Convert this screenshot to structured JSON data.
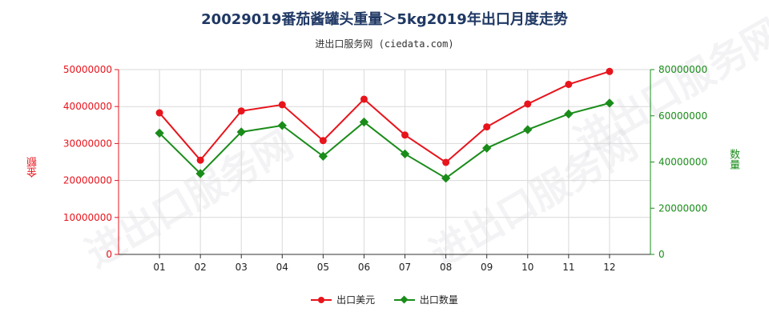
{
  "title": "20029019番茄酱罐头重量＞5kg2019年出口月度走势",
  "subtitle": "进出口服务网 (ciedata.com)",
  "watermark": "进出口服务网",
  "colors": {
    "amount": "#e8141c",
    "quantity": "#1a8c1a",
    "title": "#1f3864"
  },
  "chart_data": {
    "type": "line",
    "categories": [
      "01",
      "02",
      "03",
      "04",
      "05",
      "06",
      "07",
      "08",
      "09",
      "10",
      "11",
      "12"
    ],
    "series": [
      {
        "name": "出口美元",
        "axis": "left",
        "marker": "circle",
        "values": [
          38300000,
          25500000,
          38800000,
          40500000,
          30800000,
          42000000,
          32300000,
          24900000,
          34500000,
          40700000,
          46000000,
          49500000
        ]
      },
      {
        "name": "出口数量",
        "axis": "right",
        "marker": "diamond",
        "values": [
          52500000,
          35000000,
          53000000,
          55800000,
          42500000,
          57300000,
          43500000,
          33000000,
          46000000,
          54000000,
          60800000,
          65500000
        ]
      }
    ],
    "ylabel": "金额",
    "y2label": "数量",
    "ylim": [
      0,
      50000000
    ],
    "y2lim": [
      0,
      80000000
    ],
    "yticks": [
      0,
      10000000,
      20000000,
      30000000,
      40000000,
      50000000
    ],
    "y2ticks": [
      0,
      20000000,
      40000000,
      60000000,
      80000000
    ],
    "ytick_labels": [
      "0",
      "10000000",
      "20000000",
      "30000000",
      "40000000",
      "50000000"
    ],
    "y2tick_labels": [
      "0",
      "20000000",
      "40000000",
      "60000000",
      "80000000"
    ],
    "grid": true,
    "legend_position": "bottom"
  }
}
